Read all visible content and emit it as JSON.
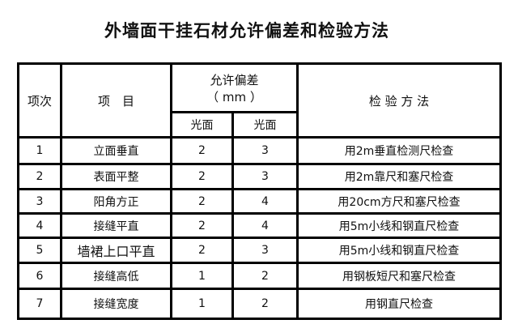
{
  "title": "外墙面干挂石材允许偏差和检验方法",
  "header": {
    "index": "项次",
    "item": "项　目",
    "tolerance": "允许偏差",
    "unit": "（ mm ）",
    "method": "检 验 方 法",
    "sub": [
      "光面",
      "光面"
    ]
  },
  "rows": [
    {
      "no": "1",
      "item": "立面垂直",
      "a": "2",
      "b": "3",
      "method": "用2m垂直检测尺检查"
    },
    {
      "no": "2",
      "item": "表面平整",
      "a": "2",
      "b": "3",
      "method": "用2m靠尺和塞尺检查"
    },
    {
      "no": "3",
      "item": "阳角方正",
      "a": "2",
      "b": "4",
      "method": "用20cm方尺和塞尺检查"
    },
    {
      "no": "4",
      "item": "接缝平直",
      "a": "2",
      "b": "4",
      "method": "用5m小线和钢直尺检查"
    },
    {
      "no": "5",
      "item": "墙裙上口平直",
      "a": "2",
      "b": "3",
      "method": "用5m小线和钢直尺检查"
    },
    {
      "no": "6",
      "item": "接缝高低",
      "a": "1",
      "b": "2",
      "method": "用钢板短尺和塞尺检查"
    },
    {
      "no": "7",
      "item": "接缝宽度",
      "a": "1",
      "b": "2",
      "method": "用钢直尺检查"
    }
  ]
}
